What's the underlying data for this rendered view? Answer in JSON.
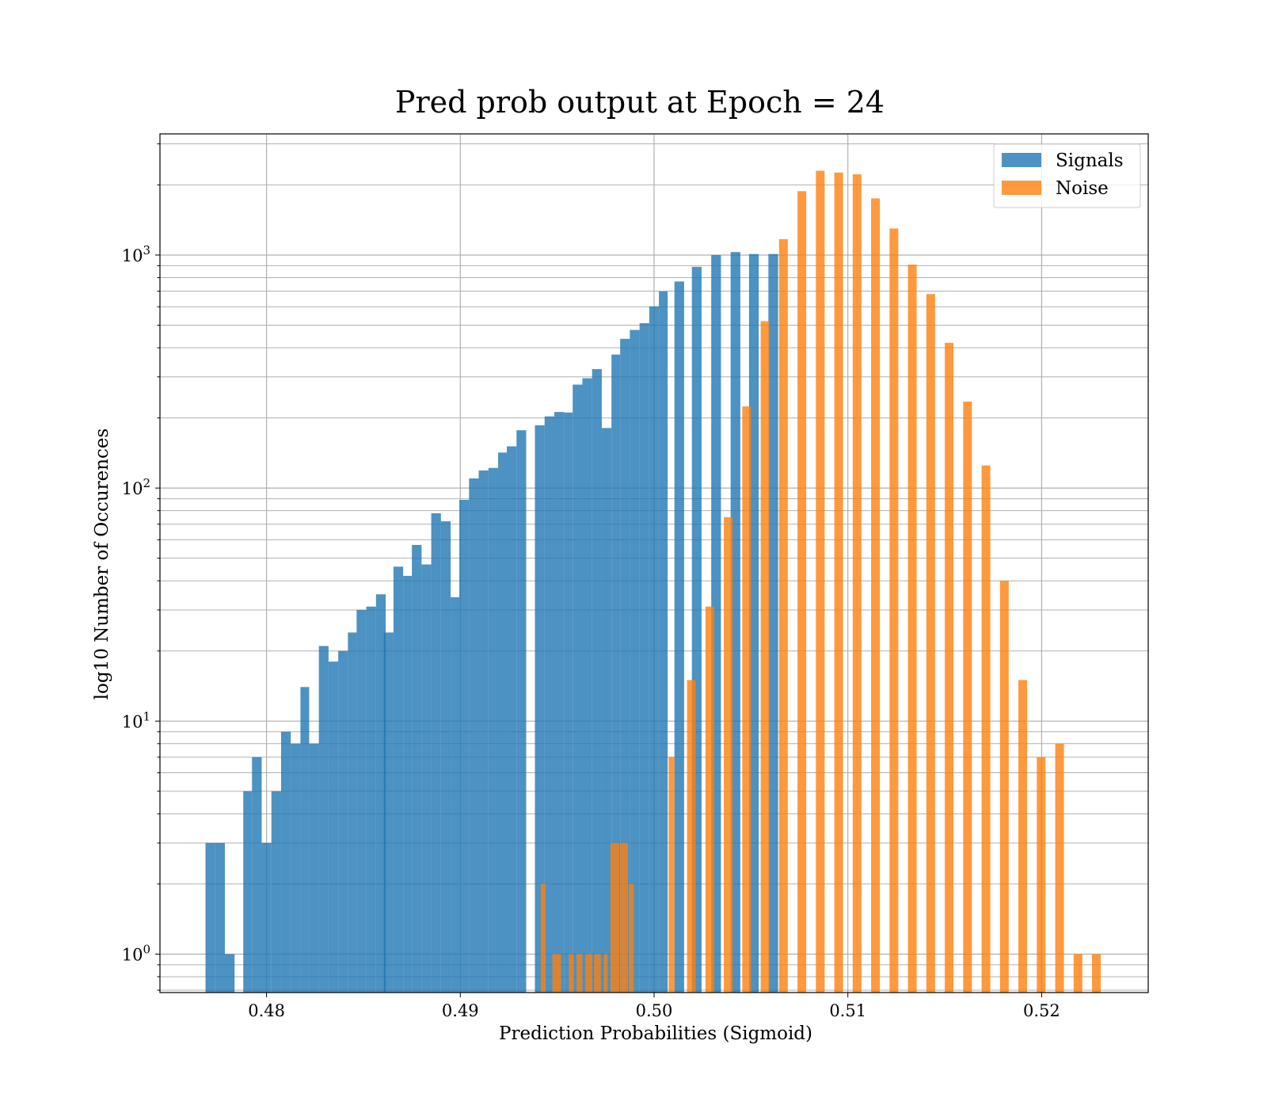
{
  "chart_data": {
    "type": "bar",
    "title": "Pred prob output at Epoch = 24",
    "xlabel": "Prediction Probabilities (Sigmoid)",
    "ylabel": "log10 Number of Occurences",
    "xlim": [
      0.4745,
      0.5255
    ],
    "ylim_log10": [
      -0.165,
      3.52
    ],
    "y_scale": "log",
    "grid": true,
    "legend_position": "top-right",
    "xticks": [
      0.48,
      0.49,
      0.5,
      0.51,
      0.52
    ],
    "xtick_labels": [
      "0.48",
      "0.49",
      "0.50",
      "0.51",
      "0.52"
    ],
    "yticks": [
      {
        "value": 1,
        "base": "10",
        "exp": "0"
      },
      {
        "value": 10,
        "base": "10",
        "exp": "1"
      },
      {
        "value": 100,
        "base": "10",
        "exp": "2"
      },
      {
        "value": 1000,
        "base": "10",
        "exp": "3"
      }
    ],
    "series": [
      {
        "name": "Signals",
        "color": "#1f77b4",
        "opacity": 0.8,
        "bins": [
          [
            0.47685,
            0.47735,
            3
          ],
          [
            0.47735,
            0.47785,
            3
          ],
          [
            0.47785,
            0.47835,
            1
          ],
          [
            0.4788,
            0.47925,
            5
          ],
          [
            0.47925,
            0.47975,
            7
          ],
          [
            0.47975,
            0.48025,
            3
          ],
          [
            0.48025,
            0.48075,
            5
          ],
          [
            0.48075,
            0.48125,
            9
          ],
          [
            0.48125,
            0.48175,
            8
          ],
          [
            0.48175,
            0.4822,
            14
          ],
          [
            0.4822,
            0.4827,
            8
          ],
          [
            0.4827,
            0.4832,
            21
          ],
          [
            0.4832,
            0.4837,
            18
          ],
          [
            0.4837,
            0.4842,
            20
          ],
          [
            0.4842,
            0.48465,
            24
          ],
          [
            0.48465,
            0.48515,
            30
          ],
          [
            0.48515,
            0.48565,
            31
          ],
          [
            0.48565,
            0.48615,
            35
          ],
          [
            0.48605,
            0.48655,
            24
          ],
          [
            0.48655,
            0.48705,
            46
          ],
          [
            0.48705,
            0.4875,
            42
          ],
          [
            0.4875,
            0.488,
            57
          ],
          [
            0.488,
            0.4885,
            47
          ],
          [
            0.4885,
            0.489,
            78
          ],
          [
            0.489,
            0.4895,
            72
          ],
          [
            0.4895,
            0.48995,
            34
          ],
          [
            0.48995,
            0.49045,
            89
          ],
          [
            0.49045,
            0.49095,
            110
          ],
          [
            0.49095,
            0.49145,
            119
          ],
          [
            0.49145,
            0.49195,
            122
          ],
          [
            0.49195,
            0.4924,
            142
          ],
          [
            0.4924,
            0.4929,
            151
          ],
          [
            0.4929,
            0.4934,
            177
          ],
          [
            0.49385,
            0.49435,
            186
          ],
          [
            0.49435,
            0.49485,
            203
          ],
          [
            0.49485,
            0.49535,
            212
          ],
          [
            0.49535,
            0.4958,
            211
          ],
          [
            0.4958,
            0.4963,
            278
          ],
          [
            0.4963,
            0.4968,
            296
          ],
          [
            0.4968,
            0.4973,
            324
          ],
          [
            0.4973,
            0.4978,
            181
          ],
          [
            0.4978,
            0.49825,
            374
          ],
          [
            0.49825,
            0.49875,
            437
          ],
          [
            0.49875,
            0.49925,
            477
          ],
          [
            0.49925,
            0.49975,
            510
          ],
          [
            0.49975,
            0.50025,
            602
          ],
          [
            0.50025,
            0.5007,
            698
          ],
          [
            0.50105,
            0.50155,
            770
          ],
          [
            0.50195,
            0.50245,
            890
          ],
          [
            0.50295,
            0.50345,
            1000
          ],
          [
            0.50395,
            0.50445,
            1030
          ],
          [
            0.5049,
            0.5054,
            1010
          ],
          [
            0.5059,
            0.5064,
            1010
          ]
        ]
      },
      {
        "name": "Noise",
        "color": "#ff7f0e",
        "opacity": 0.8,
        "bins": [
          [
            0.49415,
            0.4944,
            2
          ],
          [
            0.49475,
            0.4952,
            1
          ],
          [
            0.4956,
            0.49585,
            1
          ],
          [
            0.496,
            0.4963,
            1
          ],
          [
            0.49645,
            0.4968,
            1
          ],
          [
            0.4969,
            0.49725,
            1
          ],
          [
            0.4974,
            0.4976,
            1
          ],
          [
            0.49775,
            0.4982,
            3
          ],
          [
            0.49825,
            0.49865,
            3
          ],
          [
            0.4987,
            0.49895,
            2
          ],
          [
            0.50075,
            0.50105,
            7
          ],
          [
            0.5017,
            0.50215,
            15
          ],
          [
            0.50265,
            0.5031,
            31
          ],
          [
            0.5036,
            0.50405,
            75
          ],
          [
            0.50455,
            0.505,
            224
          ],
          [
            0.5055,
            0.50595,
            520
          ],
          [
            0.50645,
            0.5069,
            1170
          ],
          [
            0.5074,
            0.50785,
            1880
          ],
          [
            0.50835,
            0.5088,
            2300
          ],
          [
            0.5093,
            0.50975,
            2260
          ],
          [
            0.51025,
            0.5107,
            2220
          ],
          [
            0.5112,
            0.51165,
            1750
          ],
          [
            0.51215,
            0.5126,
            1300
          ],
          [
            0.5131,
            0.51355,
            910
          ],
          [
            0.51405,
            0.5145,
            680
          ],
          [
            0.515,
            0.51545,
            420
          ],
          [
            0.51595,
            0.5164,
            235
          ],
          [
            0.5169,
            0.51735,
            125
          ],
          [
            0.51785,
            0.5183,
            40
          ],
          [
            0.5188,
            0.51925,
            15
          ],
          [
            0.51975,
            0.5202,
            7
          ],
          [
            0.5207,
            0.52115,
            8
          ],
          [
            0.52165,
            0.5221,
            1
          ],
          [
            0.5226,
            0.52305,
            1
          ]
        ]
      }
    ]
  }
}
